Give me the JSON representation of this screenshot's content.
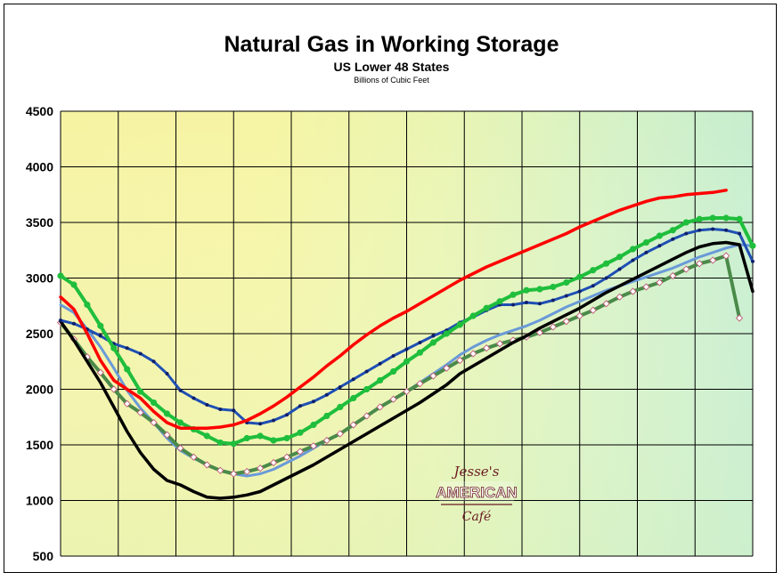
{
  "chart_data": {
    "type": "line",
    "title": "Natural Gas in Working Storage",
    "subtitle": "US Lower 48 States",
    "unit_label": "Billions of Cubic Feet",
    "ylim": [
      500,
      4500
    ],
    "yticks": [
      500,
      1000,
      1500,
      2000,
      2500,
      3000,
      3500,
      4000,
      4500
    ],
    "x_points": 53,
    "grid": true,
    "legend": "none",
    "logo": {
      "line1": "Jesse's",
      "line2": "AMERICAN",
      "line3": "Café"
    },
    "series": [
      {
        "color": "#f0f000",
        "style": "navy-dots",
        "color_hex": "#1f4fb4",
        "x": [
          0,
          1,
          2,
          3,
          4,
          5,
          6,
          7,
          8,
          9,
          10,
          11,
          12,
          13,
          14,
          15,
          16,
          17,
          18,
          19,
          20,
          21,
          22,
          23,
          24,
          25,
          26,
          27,
          28,
          29,
          30,
          31,
          32,
          33,
          34,
          35,
          36,
          37,
          38,
          39,
          40,
          41,
          42,
          43,
          44,
          45,
          46,
          47,
          48,
          49,
          50,
          51,
          52
        ],
        "values": [
          2620,
          2590,
          2540,
          2480,
          2410,
          2370,
          2320,
          2250,
          2140,
          1990,
          1920,
          1860,
          1820,
          1810,
          1700,
          1690,
          1720,
          1770,
          1850,
          1890,
          1950,
          2020,
          2090,
          2160,
          2230,
          2300,
          2360,
          2420,
          2480,
          2530,
          2600,
          2650,
          2710,
          2760,
          2760,
          2780,
          2770,
          2800,
          2840,
          2880,
          2930,
          3000,
          3080,
          3160,
          3230,
          3290,
          3350,
          3400,
          3430,
          3440,
          3430,
          3400,
          3150
        ]
      },
      {
        "style": "green-dots",
        "color_hex": "#1fbe3c",
        "x": [
          0,
          1,
          2,
          3,
          4,
          5,
          6,
          7,
          8,
          9,
          10,
          11,
          12,
          13,
          14,
          15,
          16,
          17,
          18,
          19,
          20,
          21,
          22,
          23,
          24,
          25,
          26,
          27,
          28,
          29,
          30,
          31,
          32,
          33,
          34,
          35,
          36,
          37,
          38,
          39,
          40,
          41,
          42,
          43,
          44,
          45,
          46,
          47,
          48,
          49,
          50,
          51,
          52
        ],
        "values": [
          3020,
          2940,
          2760,
          2570,
          2370,
          2180,
          1980,
          1880,
          1780,
          1700,
          1640,
          1580,
          1520,
          1510,
          1560,
          1580,
          1540,
          1560,
          1610,
          1680,
          1760,
          1840,
          1920,
          2000,
          2080,
          2160,
          2250,
          2330,
          2420,
          2500,
          2580,
          2660,
          2730,
          2790,
          2850,
          2890,
          2900,
          2920,
          2960,
          3010,
          3070,
          3130,
          3190,
          3260,
          3320,
          3380,
          3430,
          3500,
          3530,
          3540,
          3540,
          3530,
          3290
        ]
      },
      {
        "style": "red",
        "color_hex": "#ff0000",
        "x": [
          0,
          1,
          2,
          3,
          4,
          5,
          6,
          7,
          8,
          9,
          10,
          11,
          12,
          13,
          14,
          15,
          16,
          17,
          18,
          19,
          20,
          21,
          22,
          23,
          24,
          25,
          26,
          27,
          28,
          29,
          30,
          31,
          32,
          33,
          34,
          35,
          36,
          37,
          38,
          39,
          40,
          41,
          42,
          43,
          44,
          45,
          46,
          47,
          48,
          49,
          50
        ],
        "values": [
          2830,
          2720,
          2500,
          2260,
          2080,
          2000,
          1920,
          1800,
          1700,
          1650,
          1650,
          1650,
          1660,
          1680,
          1720,
          1780,
          1850,
          1930,
          2020,
          2110,
          2210,
          2300,
          2400,
          2490,
          2570,
          2640,
          2700,
          2770,
          2840,
          2910,
          2980,
          3040,
          3100,
          3150,
          3200,
          3250,
          3300,
          3350,
          3400,
          3460,
          3510,
          3560,
          3610,
          3650,
          3690,
          3720,
          3730,
          3750,
          3760,
          3770,
          3790
        ]
      },
      {
        "style": "black",
        "color_hex": "#000000",
        "x": [
          0,
          1,
          2,
          3,
          4,
          5,
          6,
          7,
          8,
          9,
          10,
          11,
          12,
          13,
          14,
          15,
          16,
          17,
          18,
          19,
          20,
          21,
          22,
          23,
          24,
          25,
          26,
          27,
          28,
          29,
          30,
          31,
          32,
          33,
          34,
          35,
          36,
          37,
          38,
          39,
          40,
          41,
          42,
          43,
          44,
          45,
          46,
          47,
          48,
          49,
          50,
          51,
          52
        ],
        "values": [
          2610,
          2440,
          2250,
          2060,
          1840,
          1620,
          1430,
          1280,
          1180,
          1140,
          1080,
          1030,
          1020,
          1030,
          1050,
          1080,
          1140,
          1200,
          1260,
          1320,
          1390,
          1460,
          1530,
          1600,
          1670,
          1740,
          1810,
          1880,
          1960,
          2040,
          2140,
          2210,
          2280,
          2350,
          2420,
          2480,
          2550,
          2610,
          2670,
          2730,
          2800,
          2870,
          2930,
          2990,
          3050,
          3110,
          3170,
          3230,
          3280,
          3310,
          3320,
          3300,
          2880
        ]
      },
      {
        "style": "olive-diamonds",
        "color_hex": "#4a8a4a",
        "x": [
          0,
          1,
          2,
          3,
          4,
          5,
          6,
          7,
          8,
          9,
          10,
          11,
          12,
          13,
          14,
          15,
          16,
          17,
          18,
          19,
          20,
          21,
          22,
          23,
          24,
          25,
          26,
          27,
          28,
          29,
          30,
          31,
          32,
          33,
          34,
          35,
          36,
          37,
          38,
          39,
          40,
          41,
          42,
          43,
          44,
          45,
          46,
          47,
          48,
          49,
          50,
          51
        ],
        "values": [
          2600,
          2450,
          2290,
          2150,
          2000,
          1870,
          1790,
          1700,
          1590,
          1470,
          1390,
          1320,
          1270,
          1240,
          1260,
          1290,
          1340,
          1390,
          1440,
          1490,
          1540,
          1600,
          1680,
          1760,
          1840,
          1910,
          1980,
          2050,
          2120,
          2190,
          2260,
          2320,
          2370,
          2410,
          2440,
          2470,
          2510,
          2560,
          2610,
          2660,
          2710,
          2770,
          2830,
          2880,
          2920,
          2960,
          3020,
          3080,
          3130,
          3160,
          3200,
          2640
        ]
      },
      {
        "style": "lightblue",
        "color_hex": "#6a9ad8",
        "x": [
          0,
          1,
          2,
          3,
          4,
          5,
          6,
          7,
          8,
          9,
          10,
          11,
          12,
          13,
          14,
          15,
          16,
          17,
          18,
          19,
          20,
          21,
          22,
          23,
          24,
          25,
          26,
          27,
          28,
          29,
          30,
          31,
          32,
          33,
          34,
          35,
          36,
          37,
          38,
          39,
          40,
          41,
          42,
          43,
          44,
          45,
          46,
          47,
          48,
          49,
          50,
          51,
          52
        ],
        "values": [
          2760,
          2690,
          2540,
          2380,
          2190,
          1990,
          1830,
          1700,
          1560,
          1450,
          1380,
          1320,
          1270,
          1240,
          1220,
          1240,
          1280,
          1340,
          1400,
          1470,
          1540,
          1600,
          1680,
          1760,
          1840,
          1910,
          1980,
          2060,
          2140,
          2220,
          2310,
          2380,
          2440,
          2490,
          2530,
          2570,
          2620,
          2680,
          2740,
          2790,
          2840,
          2890,
          2930,
          2970,
          3010,
          3050,
          3090,
          3140,
          3190,
          3230,
          3270,
          3300,
          3290
        ]
      }
    ]
  }
}
